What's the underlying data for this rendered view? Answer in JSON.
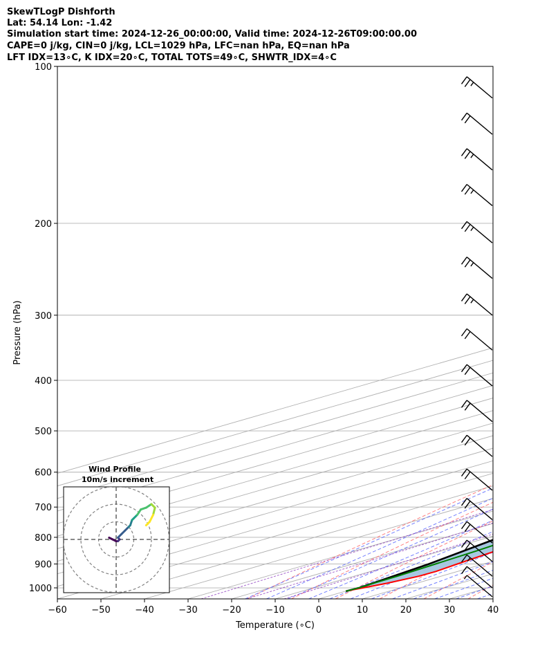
{
  "header": {
    "line1": "SkewTLogP Dishforth",
    "line2": "Lat: 54.14   Lon: -1.42",
    "line3": "Simulation start time: 2024-12-26_00:00:00, Valid time: 2024-12-26T09:00:00.00",
    "line4": "CAPE=0 j/kg, CIN=0 j/kg, LCL=1029 hPa, LFC=nan hPa, EQ=nan hPa",
    "line5": "LFT IDX=13∘C, K IDX=20∘C, TOTAL TOTS=49∘C, SHWTR_IDX=4∘C"
  },
  "chart_data": {
    "type": "line",
    "subtype": "skew-T log-P",
    "xlabel": "Temperature (∘C)",
    "ylabel": "Pressure (hPa)",
    "xlim": [
      -60,
      40
    ],
    "ylim": [
      1050,
      100
    ],
    "yscale": "log",
    "x_ticks": [
      "−60",
      "−50",
      "−40",
      "−30",
      "−20",
      "−10",
      "0",
      "10",
      "20",
      "30",
      "40"
    ],
    "y_ticks": [
      "100",
      "200",
      "300",
      "400",
      "500",
      "600",
      "700",
      "800",
      "900",
      "1000"
    ],
    "grid": true,
    "colors": {
      "temperature": "#ff0000",
      "dewpoint": "#008000",
      "parcel": "#000000",
      "shading": "#a3c6e0",
      "dry_adiabats": "#ff6060",
      "moist_adiabats": "#5060ff",
      "mixing_ratio": "#9040c0",
      "isotherms": "#b0b0b0"
    },
    "series": [
      {
        "key": "temperature",
        "points": [
          [
            100,
            -5
          ],
          [
            110,
            -5
          ],
          [
            120,
            -6
          ],
          [
            140,
            -8.5
          ],
          [
            160,
            -12
          ],
          [
            175,
            -14
          ],
          [
            190,
            -16
          ],
          [
            210,
            -18
          ],
          [
            230,
            -19
          ],
          [
            260,
            -19
          ],
          [
            300,
            -18.5
          ],
          [
            350,
            -17
          ],
          [
            400,
            -15
          ],
          [
            450,
            -13
          ],
          [
            500,
            -12.5
          ],
          [
            550,
            -11
          ],
          [
            600,
            -8
          ],
          [
            650,
            -5.5
          ],
          [
            700,
            -3
          ],
          [
            750,
            -0.8
          ],
          [
            800,
            1
          ],
          [
            850,
            2.4
          ],
          [
            900,
            4
          ],
          [
            930,
            5
          ],
          [
            950,
            4.9
          ],
          [
            980,
            3.2
          ],
          [
            1000,
            1.4
          ],
          [
            1010,
            0.4
          ],
          [
            1015,
            0.1
          ]
        ]
      },
      {
        "key": "dewpoint",
        "points": [
          [
            100,
            -19
          ],
          [
            110,
            -23
          ],
          [
            120,
            -27
          ],
          [
            140,
            -32
          ],
          [
            160,
            -37
          ],
          [
            180,
            -41
          ],
          [
            200,
            -44
          ],
          [
            220,
            -45
          ],
          [
            260,
            -44
          ],
          [
            280,
            -42
          ],
          [
            300,
            -38
          ],
          [
            350,
            -30.5
          ],
          [
            400,
            -25
          ],
          [
            450,
            -22
          ],
          [
            500,
            -18.5
          ],
          [
            550,
            -14.5
          ],
          [
            580,
            -12
          ],
          [
            600,
            -11
          ],
          [
            650,
            -9.5
          ],
          [
            700,
            -7.5
          ],
          [
            750,
            -5.5
          ],
          [
            800,
            -3.5
          ],
          [
            850,
            -2
          ],
          [
            900,
            -1
          ],
          [
            950,
            0
          ],
          [
            980,
            0.1
          ],
          [
            1000,
            0.4
          ],
          [
            1015,
            0.1
          ]
        ]
      },
      {
        "key": "parcel",
        "points": [
          [
            100,
            -87
          ],
          [
            120,
            -82
          ],
          [
            150,
            -76
          ],
          [
            200,
            -68
          ],
          [
            250,
            -61
          ],
          [
            300,
            -54
          ],
          [
            400,
            -41
          ],
          [
            500,
            -30
          ],
          [
            600,
            -21
          ],
          [
            700,
            -14
          ],
          [
            800,
            -7.5
          ],
          [
            900,
            -2.5
          ],
          [
            1000,
            0.5
          ],
          [
            1015,
            0.1
          ]
        ]
      }
    ],
    "wind_barbs": [
      {
        "p": 115,
        "barbs": [
          1,
          1,
          0.5
        ]
      },
      {
        "p": 135,
        "barbs": [
          1,
          1
        ]
      },
      {
        "p": 158,
        "barbs": [
          1,
          1,
          0.5
        ]
      },
      {
        "p": 185,
        "barbs": [
          1,
          1,
          0.5
        ]
      },
      {
        "p": 218,
        "barbs": [
          1,
          1,
          0.5
        ]
      },
      {
        "p": 255,
        "barbs": [
          1,
          1,
          0.5
        ]
      },
      {
        "p": 300,
        "barbs": [
          1,
          1,
          0.5
        ]
      },
      {
        "p": 350,
        "barbs": [
          1,
          1
        ]
      },
      {
        "p": 410,
        "barbs": [
          1,
          1
        ]
      },
      {
        "p": 480,
        "barbs": [
          1,
          1
        ]
      },
      {
        "p": 560,
        "barbs": [
          1,
          1
        ]
      },
      {
        "p": 650,
        "barbs": [
          1,
          1
        ]
      },
      {
        "p": 740,
        "barbs": [
          1,
          1
        ]
      },
      {
        "p": 820,
        "barbs": [
          1,
          1
        ]
      },
      {
        "p": 890,
        "barbs": [
          1,
          1
        ]
      },
      {
        "p": 950,
        "barbs": [
          1,
          0.5
        ]
      },
      {
        "p": 1000,
        "barbs": [
          1
        ]
      },
      {
        "p": 1040,
        "barbs": [
          0.5
        ]
      }
    ],
    "inset": {
      "title": "Wind Profile",
      "subtitle": "10m/s increment",
      "rings": [
        10,
        20,
        30
      ],
      "hodograph": [
        [
          -4,
          1
        ],
        [
          -2,
          0
        ],
        [
          0,
          -1
        ],
        [
          1,
          -1
        ],
        [
          2,
          0
        ],
        [
          1,
          1
        ],
        [
          3,
          3
        ],
        [
          5,
          5
        ],
        [
          7,
          7
        ],
        [
          8,
          8
        ],
        [
          9,
          11
        ],
        [
          10,
          12
        ],
        [
          12,
          14
        ],
        [
          14,
          17
        ],
        [
          17,
          18
        ],
        [
          20,
          20
        ],
        [
          22,
          18
        ],
        [
          21,
          14
        ],
        [
          19,
          10
        ],
        [
          17,
          8
        ]
      ]
    }
  }
}
